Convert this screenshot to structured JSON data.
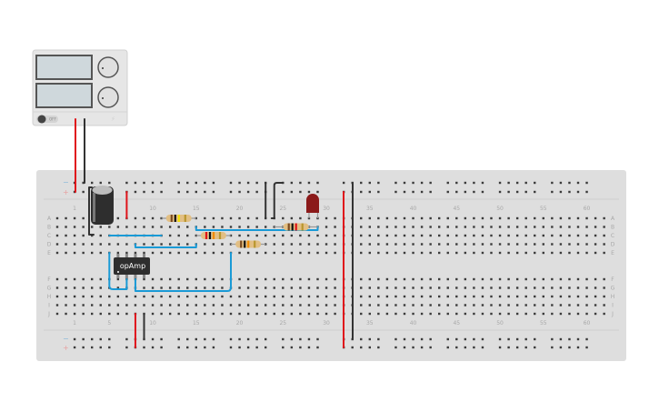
{
  "power_supply": {
    "switch_label": "OFF",
    "colors": {
      "positive": "#e0141b",
      "negative": "#333333"
    }
  },
  "breadboard": {
    "column_labels": [
      "1",
      "5",
      "10",
      "15",
      "20",
      "25",
      "30",
      "35",
      "40",
      "45",
      "50",
      "55",
      "60"
    ],
    "row_labels_top": [
      "A",
      "B",
      "C",
      "D",
      "E"
    ],
    "row_labels_bottom": [
      "F",
      "G",
      "H",
      "I",
      "J"
    ],
    "rail_minus": "−",
    "rail_plus": "+"
  },
  "components": {
    "opamp_label": "opAmp",
    "resistors": [
      {
        "bands": [
          "#7a4a20",
          "#111111",
          "#f2e000",
          "#b8962e"
        ]
      },
      {
        "bands": [
          "#e0141b",
          "#111111",
          "#f08a00",
          "#b8962e"
        ]
      },
      {
        "bands": [
          "#7a4a20",
          "#111111",
          "#f08a00",
          "#b8962e"
        ]
      },
      {
        "bands": [
          "#7a4a20",
          "#111111",
          "#e0141b",
          "#b8962e"
        ]
      }
    ],
    "led_color": "#8b1a1a",
    "wire_colors": {
      "red": "#e0141b",
      "black": "#333333",
      "blue": "#1a9ad6"
    }
  }
}
